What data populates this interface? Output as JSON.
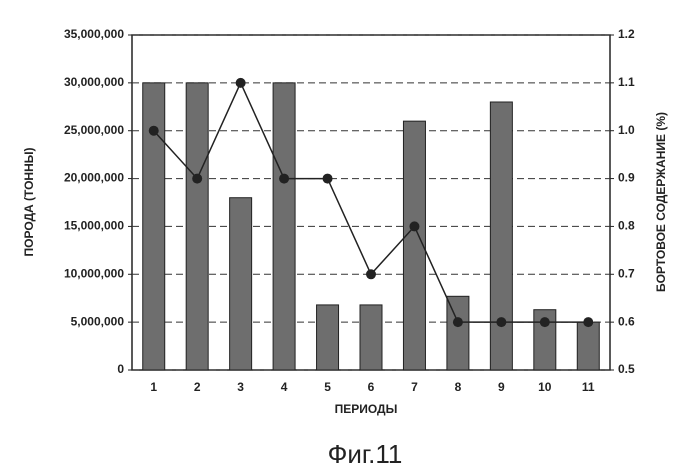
{
  "chart_data": {
    "type": "bar",
    "caption": "Фиг.11",
    "xlabel": "ПЕРИОДЫ",
    "ylabel": "ПОРОДА (ТОННЫ)",
    "y2label": "БОРТОВОЕ СОДЕРЖАНИЕ (%)",
    "categories": [
      "1",
      "2",
      "3",
      "4",
      "5",
      "6",
      "7",
      "8",
      "9",
      "10",
      "11"
    ],
    "series": [
      {
        "type": "bar",
        "color": "#6e6e6e",
        "values": [
          30000000,
          30000000,
          18000000,
          30000000,
          6800000,
          6800000,
          26000000,
          7700000,
          28000000,
          6300000,
          5000000
        ]
      },
      {
        "type": "line",
        "axis": "y2",
        "color": "#222222",
        "values": [
          1.0,
          0.9,
          1.1,
          0.9,
          0.9,
          0.7,
          0.8,
          0.6,
          0.6,
          0.6,
          0.6
        ]
      }
    ],
    "ylim": [
      0,
      35000000
    ],
    "yticks": [
      0,
      {
        "value": 5000000,
        "label": "5,000,000"
      },
      {
        "value": 10000000,
        "label": "10,000,000"
      },
      {
        "value": 15000000,
        "label": "15,000,000"
      },
      {
        "value": 20000000,
        "label": "20,000,000"
      },
      {
        "value": 25000000,
        "label": "25,000,000"
      },
      {
        "value": 30000000,
        "label": "30,000,000"
      },
      {
        "value": 35000000,
        "label": "35,000,000"
      }
    ],
    "y2lim": [
      0.5,
      1.2
    ],
    "y2ticks": [
      0.5,
      0.6,
      0.7,
      0.8,
      0.9,
      {
        "value": 1,
        "label": "1.0"
      },
      1.1,
      1.2
    ],
    "grid": true
  }
}
